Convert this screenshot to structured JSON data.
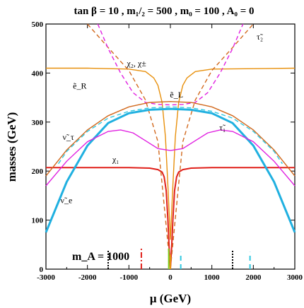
{
  "chart_data": {
    "type": "line",
    "title": "tan β = 10 ,  m₁/₂ = 500 ,  m₀ = 100 , A₀ = 0",
    "xlabel": "μ (GeV)",
    "ylabel": "masses (GeV)",
    "xlim": [
      -3000,
      3000
    ],
    "ylim": [
      0,
      500
    ],
    "xticks": [
      -3000,
      -2000,
      -1000,
      0,
      1000,
      2000,
      3000
    ],
    "yticks": [
      0,
      100,
      200,
      300,
      400,
      500
    ],
    "annotation": "m_A = 1000",
    "curve_labels": [
      {
        "text": "χ₂, χ±",
        "x": -1050,
        "y": 414
      },
      {
        "text": "ẽ_R",
        "x": -2350,
        "y": 368
      },
      {
        "text": "ẽ_L",
        "x": -10,
        "y": 350
      },
      {
        "text": "τ̃₂",
        "x": 2080,
        "y": 468
      },
      {
        "text": "ν̃_τ",
        "x": -2600,
        "y": 264
      },
      {
        "text": "τ̃₁",
        "x": 1180,
        "y": 283
      },
      {
        "text": "χ₁",
        "x": -1400,
        "y": 218
      },
      {
        "text": "ν̃_e",
        "x": -2650,
        "y": 135
      }
    ],
    "series": [
      {
        "id": "chi2",
        "color": "#e8900c",
        "style": "solid",
        "x": [
          -3000,
          -2000,
          -1000,
          -600,
          -400,
          -300,
          -200,
          -120,
          -60,
          0,
          60,
          120,
          200,
          300,
          400,
          600,
          1000,
          2000,
          3000
        ],
        "y": [
          410,
          410,
          408,
          403,
          390,
          375,
          340,
          270,
          170,
          60,
          170,
          270,
          340,
          375,
          390,
          403,
          408,
          409,
          410
        ]
      },
      {
        "id": "chi1",
        "color": "#e0201a",
        "style": "solid",
        "x": [
          -3000,
          -2000,
          -1000,
          -500,
          -300,
          -200,
          -150,
          -100,
          -60,
          -30,
          0,
          30,
          60,
          100,
          150,
          200,
          300,
          500,
          1000,
          2000,
          3000
        ],
        "y": [
          207,
          207,
          207,
          206,
          203,
          198,
          188,
          160,
          100,
          45,
          0,
          45,
          100,
          160,
          188,
          198,
          203,
          206,
          207,
          207,
          207
        ]
      },
      {
        "id": "eR",
        "color": "#d2691e",
        "style": "dashed",
        "x": [
          -2000,
          -1500,
          -1000,
          -600,
          -300,
          -150,
          0,
          150,
          300,
          600,
          1000,
          1500,
          2000
        ],
        "y": [
          500,
          452,
          405,
          345,
          260,
          130,
          0,
          130,
          260,
          345,
          405,
          452,
          500
        ]
      },
      {
        "id": "tau2",
        "color": "#e020e0",
        "style": "dashed",
        "x": [
          -1750,
          -1500,
          -1200,
          -900,
          -600,
          -300,
          0,
          300,
          600,
          900,
          1200,
          1500,
          1750
        ],
        "y": [
          500,
          450,
          400,
          360,
          340,
          336,
          335,
          336,
          340,
          360,
          400,
          450,
          500
        ]
      },
      {
        "id": "eL",
        "color": "#d2691e",
        "style": "solid",
        "x": [
          -3000,
          -2500,
          -2000,
          -1500,
          -1000,
          -500,
          0,
          500,
          1000,
          1500,
          2000,
          2500,
          3000
        ],
        "y": [
          190,
          243,
          284,
          313,
          331,
          340,
          342,
          340,
          331,
          313,
          284,
          243,
          190
        ]
      },
      {
        "id": "nutau",
        "color": "#30c8e0",
        "style": "dashed",
        "x": [
          -2700,
          -2500,
          -2000,
          -1500,
          -1000,
          -500,
          0,
          500,
          1000,
          1500,
          2000,
          2500,
          2700
        ],
        "y": [
          215,
          240,
          281,
          308,
          322,
          329,
          331,
          329,
          322,
          308,
          281,
          240,
          215
        ]
      },
      {
        "id": "nue",
        "color": "#20b0e0",
        "style": "solid",
        "x": [
          -3000,
          -2500,
          -2000,
          -1500,
          -1000,
          -500,
          0,
          500,
          1000,
          1500,
          2000,
          2500,
          3000
        ],
        "y": [
          75,
          178,
          252,
          298,
          318,
          325,
          327,
          325,
          318,
          298,
          252,
          178,
          75
        ]
      },
      {
        "id": "tau1",
        "color": "#e020e0",
        "style": "solid",
        "x": [
          -3000,
          -2500,
          -2000,
          -1500,
          -1200,
          -900,
          -600,
          -300,
          0,
          300,
          600,
          900,
          1200,
          1500,
          2000,
          2500,
          3000
        ],
        "y": [
          170,
          220,
          260,
          281,
          284,
          278,
          262,
          246,
          242,
          246,
          262,
          278,
          284,
          281,
          260,
          220,
          170
        ]
      }
    ],
    "vertical_markers": [
      {
        "x": -1500,
        "color": "#000000",
        "style": "dotted",
        "y_top": 40
      },
      {
        "x": 1500,
        "color": "#000000",
        "style": "dotted",
        "y_top": 40
      },
      {
        "x": -700,
        "color": "#e0201a",
        "style": "dashdot",
        "y_top": 42
      },
      {
        "x": 250,
        "color": "#30c8e0",
        "style": "dashed",
        "y_top": 35
      },
      {
        "x": 1920,
        "color": "#30c8e0",
        "style": "dashed",
        "y_top": 35
      },
      {
        "x": -40,
        "color": "#7fd020",
        "style": "solid",
        "y_top": 42
      },
      {
        "x": 0,
        "color": "#e8900c",
        "style": "solid",
        "y_top": 30
      }
    ]
  }
}
